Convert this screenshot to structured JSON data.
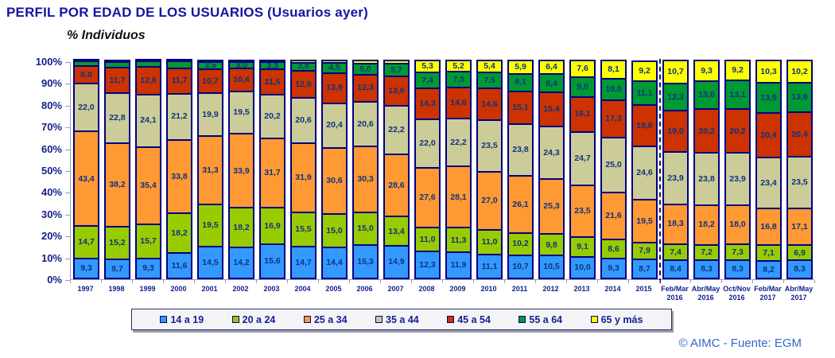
{
  "header": {
    "title": "PERFIL POR EDAD DE LOS USUARIOS (Usuarios ayer)",
    "subtitle": "% Individuos"
  },
  "footer": {
    "credit": "© AIMC - Fuente: EGM"
  },
  "style": {
    "title_color": "#1515A3",
    "axis_color": "#9999CC",
    "tick_label_color": "#16208F",
    "value_label_color": "#0D3380",
    "segment_border_color": "#000080",
    "footer_color": "#3366CC"
  },
  "chart_data": {
    "type": "bar",
    "stacked": true,
    "title": "PERFIL POR EDAD DE LOS USUARIOS (Usuarios ayer)",
    "units_label": "% Individuos",
    "xlabel": "",
    "ylabel": "% Individuos",
    "ylim": [
      0,
      100
    ],
    "grid": false,
    "legend_position": "bottom",
    "y_ticks": [
      "100%",
      "90%",
      "80%",
      "70%",
      "60%",
      "50%",
      "40%",
      "30%",
      "20%",
      "10%",
      "0%"
    ],
    "categories": [
      "1997",
      "1998",
      "1999",
      "2000",
      "2001",
      "2002",
      "2003",
      "2004",
      "2005",
      "2006",
      "2007",
      "2008",
      "2009",
      "2010",
      "2011",
      "2012",
      "2013",
      "2014",
      "2015",
      "Feb/Mar 2016",
      "Abr/May 2016",
      "Oct/Nov 2016",
      "Feb/Mar 2017",
      "Abr/May 2017"
    ],
    "separator_before_index": 19,
    "series": [
      {
        "name": "14 a 19",
        "color": "#3399FF",
        "values": [
          9.3,
          8.7,
          9.3,
          11.6,
          14.5,
          14.2,
          15.6,
          14.7,
          14.4,
          15.3,
          14.9,
          12.3,
          11.9,
          11.1,
          10.7,
          10.5,
          10.0,
          9.3,
          8.7,
          8.4,
          8.3,
          8.3,
          8.2,
          8.3
        ],
        "labels": [
          "9,3",
          "8,7",
          "9,3",
          "11,6",
          "14,5",
          "14,2",
          "15,6",
          "14,7",
          "14,4",
          "15,3",
          "14,9",
          "12,3",
          "11,9",
          "11,1",
          "10,7",
          "10,5",
          "10,0",
          "9,3",
          "8,7",
          "8,4",
          "8,3",
          "8,3",
          "8,2",
          "8,3"
        ]
      },
      {
        "name": "20 a 24",
        "color": "#99CC00",
        "values": [
          14.7,
          15.2,
          15.7,
          18.2,
          19.5,
          18.2,
          16.9,
          15.5,
          15.0,
          15.0,
          13.4,
          11.0,
          11.3,
          11.0,
          10.2,
          9.8,
          9.1,
          8.6,
          7.9,
          7.4,
          7.2,
          7.3,
          7.1,
          6.9
        ],
        "labels": [
          "14,7",
          "15,2",
          "15,7",
          "18,2",
          "19,5",
          "18,2",
          "16,9",
          "15,5",
          "15,0",
          "15,0",
          "13,4",
          "11,0",
          "11,3",
          "11,0",
          "10,2",
          "9,8",
          "9,1",
          "8,6",
          "7,9",
          "7,4",
          "7,2",
          "7,3",
          "7,1",
          "6,9"
        ]
      },
      {
        "name": "25 a 34",
        "color": "#FF9933",
        "values": [
          43.4,
          38.2,
          35.4,
          33.8,
          31.3,
          33.9,
          31.7,
          31.9,
          30.6,
          30.3,
          28.6,
          27.6,
          28.1,
          27.0,
          26.1,
          25.3,
          23.5,
          21.6,
          19.5,
          18.3,
          18.2,
          18.0,
          16.8,
          17.1
        ],
        "labels": [
          "43,4",
          "38,2",
          "35,4",
          "33,8",
          "31,3",
          "33,9",
          "31,7",
          "31,9",
          "30,6",
          "30,3",
          "28,6",
          "27,6",
          "28,1",
          "27,0",
          "26,1",
          "25,3",
          "23,5",
          "21,6",
          "19,5",
          "18,3",
          "18,2",
          "18,0",
          "16,8",
          "17,1"
        ]
      },
      {
        "name": "35 a 44",
        "color": "#CCCC99",
        "values": [
          22.0,
          22.8,
          24.1,
          21.2,
          19.9,
          19.5,
          20.2,
          20.6,
          20.4,
          20.6,
          22.2,
          22.0,
          22.2,
          23.5,
          23.8,
          24.3,
          24.7,
          25.0,
          24.6,
          23.9,
          23.8,
          23.9,
          23.4,
          23.5
        ],
        "labels": [
          "22,0",
          "22,8",
          "24,1",
          "21,2",
          "19,9",
          "19,5",
          "20,2",
          "20,6",
          "20,4",
          "20,6",
          "22,2",
          "22,0",
          "22,2",
          "23,5",
          "23,8",
          "24,3",
          "24,7",
          "25,0",
          "24,6",
          "23,9",
          "23,8",
          "23,9",
          "23,4",
          "23,5"
        ]
      },
      {
        "name": "45 a 54",
        "color": "#CC3300",
        "values": [
          8.0,
          11.7,
          12.6,
          11.7,
          10.7,
          10.4,
          11.5,
          12.6,
          13.9,
          12.3,
          13.6,
          14.3,
          14.0,
          14.6,
          15.1,
          15.4,
          16.1,
          17.3,
          18.8,
          19.0,
          20.2,
          20.2,
          20.4,
          20.4
        ],
        "labels": [
          "8,0",
          "11,7",
          "12,6",
          "11,7",
          "10,7",
          "10,4",
          "11,5",
          "12,6",
          "13,9",
          "12,3",
          "13,6",
          "14,3",
          "14,0",
          "14,6",
          "15,1",
          "15,4",
          "16,1",
          "17,3",
          "18,8",
          "19,0",
          "20,2",
          "20,2",
          "20,4",
          "20,4"
        ]
      },
      {
        "name": "55 a 64",
        "color": "#009933",
        "values": [
          2.2,
          2.8,
          2.5,
          3.0,
          3.5,
          3.0,
          3.3,
          3.8,
          4.5,
          5.0,
          5.7,
          7.4,
          7.3,
          7.5,
          8.1,
          8.4,
          9.0,
          10.0,
          11.1,
          12.3,
          13.0,
          13.1,
          13.9,
          13.6
        ],
        "labels": [
          null,
          null,
          null,
          null,
          "3,5",
          "3,0",
          "3,3",
          "3,8",
          "4,5",
          "5,0",
          "5,7",
          "7,4",
          "7,3",
          "7,5",
          "8,1",
          "8,4",
          "9,0",
          "10,0",
          "11,1",
          "12,3",
          "13,0",
          "13,1",
          "13,9",
          "13,6"
        ]
      },
      {
        "name": "65 y más",
        "color": "#FFFF00",
        "values": [
          0.4,
          0.6,
          0.4,
          0.5,
          0.6,
          0.8,
          0.8,
          0.9,
          1.2,
          1.5,
          1.6,
          5.3,
          5.2,
          5.4,
          5.9,
          6.4,
          7.6,
          8.1,
          9.2,
          10.7,
          9.3,
          9.2,
          10.3,
          10.2
        ],
        "labels": [
          null,
          null,
          null,
          null,
          null,
          null,
          null,
          null,
          null,
          null,
          null,
          "5,3",
          "5,2",
          "5,4",
          "5,9",
          "6,4",
          "7,6",
          "8,1",
          "9,2",
          "10,7",
          "9,3",
          "9,2",
          "10,3",
          "10,2"
        ]
      }
    ]
  }
}
